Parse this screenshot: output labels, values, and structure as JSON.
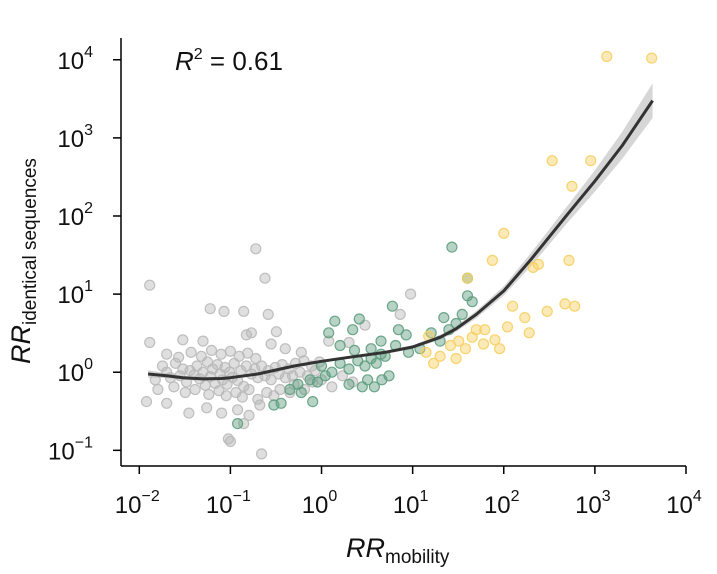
{
  "chart_data": {
    "type": "scatter",
    "annotation": {
      "lhs": "R",
      "sup": "2",
      "rhs": " = 0.61"
    },
    "xlabel": {
      "main": "RR",
      "sub": "mobility"
    },
    "ylabel": {
      "main": "RR",
      "sub": "identical sequences"
    },
    "x_scale": "log",
    "y_scale": "log",
    "xlim": [
      0.0063,
      10000
    ],
    "ylim": [
      0.063,
      19000
    ],
    "x_ticks": [
      {
        "value": 0.01,
        "base": "10",
        "exp": "−2"
      },
      {
        "value": 0.1,
        "base": "10",
        "exp": "−1"
      },
      {
        "value": 1,
        "base": "10",
        "exp": "0"
      },
      {
        "value": 10,
        "base": "10",
        "exp": "1"
      },
      {
        "value": 100,
        "base": "10",
        "exp": "2"
      },
      {
        "value": 1000,
        "base": "10",
        "exp": "3"
      },
      {
        "value": 10000,
        "base": "10",
        "exp": "4"
      }
    ],
    "y_ticks": [
      {
        "value": 0.1,
        "base": "10",
        "exp": "−1"
      },
      {
        "value": 1,
        "base": "10",
        "exp": "0"
      },
      {
        "value": 10,
        "base": "10",
        "exp": "1"
      },
      {
        "value": 100,
        "base": "10",
        "exp": "2"
      },
      {
        "value": 1000,
        "base": "10",
        "exp": "3"
      },
      {
        "value": 10000,
        "base": "10",
        "exp": "4"
      }
    ],
    "grid": false,
    "legend": "none",
    "colors": {
      "grey": "#b9b9b9",
      "green": "#5f9e80",
      "yellow": "#f6cf62",
      "fit": "#333333",
      "band": "#c8c8c8"
    },
    "series": [
      {
        "color": "grey",
        "note": "representative points; dense cloud around (0.01–1, 0.3–3)",
        "points": [
          [
            0.013,
            13
          ],
          [
            0.06,
            6.5
          ],
          [
            0.085,
            6
          ],
          [
            0.14,
            6
          ],
          [
            0.19,
            38
          ],
          [
            0.24,
            16
          ],
          [
            0.26,
            5.5
          ],
          [
            0.22,
            0.09
          ],
          [
            0.14,
            0.22
          ],
          [
            0.1,
            0.13
          ],
          [
            0.095,
            0.14
          ],
          [
            0.013,
            2.4
          ],
          [
            0.03,
            2.6
          ],
          [
            0.05,
            2.5
          ],
          [
            0.15,
            3.0
          ],
          [
            0.17,
            3.2
          ],
          [
            0.32,
            3.3
          ],
          [
            0.28,
            2.3
          ],
          [
            0.4,
            2.0
          ],
          [
            0.6,
            1.8
          ],
          [
            1.2,
            2.5
          ],
          [
            2.0,
            2.4
          ],
          [
            3.0,
            4.0
          ],
          [
            9.5,
            10
          ],
          [
            7.3,
            5.5
          ],
          [
            0.012,
            0.42
          ],
          [
            0.02,
            0.4
          ],
          [
            0.035,
            0.3
          ],
          [
            0.055,
            0.35
          ],
          [
            0.08,
            0.3
          ],
          [
            0.12,
            0.33
          ],
          [
            0.16,
            0.28
          ],
          [
            0.21,
            0.38
          ],
          [
            0.3,
            0.5
          ],
          [
            0.45,
            0.55
          ],
          [
            0.015,
            0.8
          ],
          [
            0.018,
            1.2
          ],
          [
            0.02,
            1.0
          ],
          [
            0.022,
            0.85
          ],
          [
            0.025,
            1.3
          ],
          [
            0.028,
            0.9
          ],
          [
            0.03,
            1.1
          ],
          [
            0.033,
            0.75
          ],
          [
            0.036,
            1.05
          ],
          [
            0.04,
            0.92
          ],
          [
            0.043,
            1.2
          ],
          [
            0.046,
            0.82
          ],
          [
            0.05,
            1.0
          ],
          [
            0.053,
            0.68
          ],
          [
            0.056,
            1.35
          ],
          [
            0.06,
            0.88
          ],
          [
            0.064,
            1.1
          ],
          [
            0.068,
            0.72
          ],
          [
            0.072,
            1.25
          ],
          [
            0.077,
            0.95
          ],
          [
            0.082,
            0.8
          ],
          [
            0.087,
            1.15
          ],
          [
            0.092,
            0.7
          ],
          [
            0.098,
            1.0
          ],
          [
            0.105,
            0.86
          ],
          [
            0.11,
            1.3
          ],
          [
            0.12,
            0.78
          ],
          [
            0.13,
            1.05
          ],
          [
            0.14,
            0.66
          ],
          [
            0.15,
            1.2
          ],
          [
            0.016,
            0.6
          ],
          [
            0.024,
            0.65
          ],
          [
            0.032,
            0.55
          ],
          [
            0.041,
            0.6
          ],
          [
            0.058,
            0.52
          ],
          [
            0.075,
            0.58
          ],
          [
            0.09,
            0.5
          ],
          [
            0.115,
            0.55
          ],
          [
            0.135,
            0.48
          ],
          [
            0.16,
            0.6
          ],
          [
            0.02,
            1.7
          ],
          [
            0.027,
            1.55
          ],
          [
            0.037,
            1.8
          ],
          [
            0.048,
            1.6
          ],
          [
            0.062,
            1.9
          ],
          [
            0.079,
            1.7
          ],
          [
            0.1,
            1.85
          ],
          [
            0.125,
            1.6
          ],
          [
            0.155,
            1.75
          ],
          [
            0.19,
            1.5
          ],
          [
            0.17,
            0.95
          ],
          [
            0.185,
            1.1
          ],
          [
            0.2,
            0.85
          ],
          [
            0.22,
            1.2
          ],
          [
            0.24,
            0.9
          ],
          [
            0.26,
            1.05
          ],
          [
            0.28,
            0.8
          ],
          [
            0.31,
            1.15
          ],
          [
            0.34,
            0.95
          ],
          [
            0.37,
            1.25
          ],
          [
            0.4,
            0.85
          ],
          [
            0.44,
            1.1
          ],
          [
            0.48,
            0.9
          ],
          [
            0.52,
            1.3
          ],
          [
            0.58,
            1.0
          ],
          [
            0.64,
            1.4
          ],
          [
            0.7,
            0.9
          ],
          [
            0.78,
            1.2
          ],
          [
            0.85,
            1.05
          ],
          [
            0.95,
            1.35
          ],
          [
            0.2,
            0.45
          ],
          [
            0.25,
            0.55
          ],
          [
            0.35,
            0.6
          ],
          [
            0.5,
            0.7
          ],
          [
            0.65,
            0.6
          ],
          [
            0.8,
            0.75
          ],
          [
            1.0,
            0.8
          ],
          [
            1.3,
            0.65
          ],
          [
            1.7,
            0.9
          ],
          [
            2.2,
            0.75
          ]
        ]
      },
      {
        "color": "green",
        "points": [
          [
            0.12,
            0.22
          ],
          [
            0.3,
            0.38
          ],
          [
            0.36,
            0.4
          ],
          [
            0.45,
            0.6
          ],
          [
            0.6,
            0.55
          ],
          [
            0.8,
            0.42
          ],
          [
            0.9,
            0.75
          ],
          [
            1.1,
            0.9
          ],
          [
            0.55,
            0.7
          ],
          [
            0.75,
            0.8
          ],
          [
            1.0,
            1.2
          ],
          [
            1.3,
            1.0
          ],
          [
            1.6,
            1.3
          ],
          [
            2.0,
            1.1
          ],
          [
            2.5,
            1.4
          ],
          [
            3.0,
            1.2
          ],
          [
            3.5,
            1.5
          ],
          [
            4.0,
            1.3
          ],
          [
            4.5,
            1.7
          ],
          [
            5.0,
            1.6
          ],
          [
            1.2,
            3.2
          ],
          [
            1.6,
            2.2
          ],
          [
            1.4,
            4.5
          ],
          [
            2.2,
            3.5
          ],
          [
            2.6,
            4.8
          ],
          [
            3.5,
            2.0
          ],
          [
            4.5,
            2.5
          ],
          [
            6.0,
            7.0
          ],
          [
            7.0,
            3.5
          ],
          [
            8.5,
            3.0
          ],
          [
            2.0,
            0.7
          ],
          [
            2.8,
            0.65
          ],
          [
            3.2,
            0.8
          ],
          [
            3.8,
            0.65
          ],
          [
            4.6,
            0.8
          ],
          [
            5.5,
            0.9
          ],
          [
            2.3,
            1.9
          ],
          [
            6.5,
            2.2
          ],
          [
            9.0,
            1.8
          ],
          [
            12,
            2.0
          ],
          [
            22,
            5
          ],
          [
            25,
            3.5
          ],
          [
            30,
            4.2
          ],
          [
            40,
            9.5
          ],
          [
            40,
            16
          ],
          [
            45,
            8
          ],
          [
            27,
            40
          ],
          [
            35,
            5.5
          ],
          [
            20,
            2.5
          ],
          [
            16,
            3.2
          ]
        ]
      },
      {
        "color": "yellow",
        "points": [
          [
            1350,
            11000
          ],
          [
            4200,
            10500
          ],
          [
            340,
            510
          ],
          [
            900,
            510
          ],
          [
            560,
            240
          ],
          [
            100,
            60
          ],
          [
            75,
            27
          ],
          [
            40,
            16
          ],
          [
            210,
            22
          ],
          [
            240,
            24
          ],
          [
            520,
            27
          ],
          [
            470,
            7.5
          ],
          [
            600,
            7.0
          ],
          [
            125,
            7.0
          ],
          [
            170,
            5.0
          ],
          [
            110,
            3.8
          ],
          [
            300,
            6.0
          ],
          [
            190,
            3.2
          ],
          [
            50,
            3.5
          ],
          [
            62,
            3.5
          ],
          [
            60,
            2.3
          ],
          [
            80,
            2.6
          ],
          [
            90,
            2.0
          ],
          [
            45,
            2.8
          ],
          [
            32,
            2.5
          ],
          [
            26,
            2.2
          ],
          [
            20,
            1.6
          ],
          [
            17,
            1.3
          ],
          [
            15,
            2.9
          ],
          [
            14,
            1.8
          ],
          [
            30,
            1.5
          ],
          [
            38,
            2.0
          ]
        ]
      }
    ],
    "fit_line": {
      "x": [
        0.0125,
        0.02,
        0.03,
        0.05,
        0.08,
        0.1,
        0.2,
        0.5,
        1,
        2,
        5,
        10,
        20,
        30,
        50,
        100,
        200,
        500,
        1000,
        2000,
        4300
      ],
      "y": [
        0.95,
        0.9,
        0.85,
        0.82,
        0.83,
        0.85,
        0.95,
        1.2,
        1.38,
        1.55,
        1.8,
        2.1,
        2.8,
        3.6,
        5.5,
        11,
        28,
        105,
        280,
        800,
        3000
      ],
      "band_lower": [
        0.85,
        0.84,
        0.8,
        0.78,
        0.79,
        0.81,
        0.91,
        1.15,
        1.33,
        1.5,
        1.72,
        1.98,
        2.6,
        3.3,
        4.9,
        9.6,
        23,
        82,
        205,
        540,
        1800
      ],
      "band_upper": [
        1.06,
        0.97,
        0.9,
        0.86,
        0.87,
        0.89,
        0.99,
        1.25,
        1.43,
        1.6,
        1.88,
        2.22,
        3.0,
        3.9,
        6.1,
        12.6,
        34,
        135,
        385,
        1200,
        5000
      ]
    }
  }
}
